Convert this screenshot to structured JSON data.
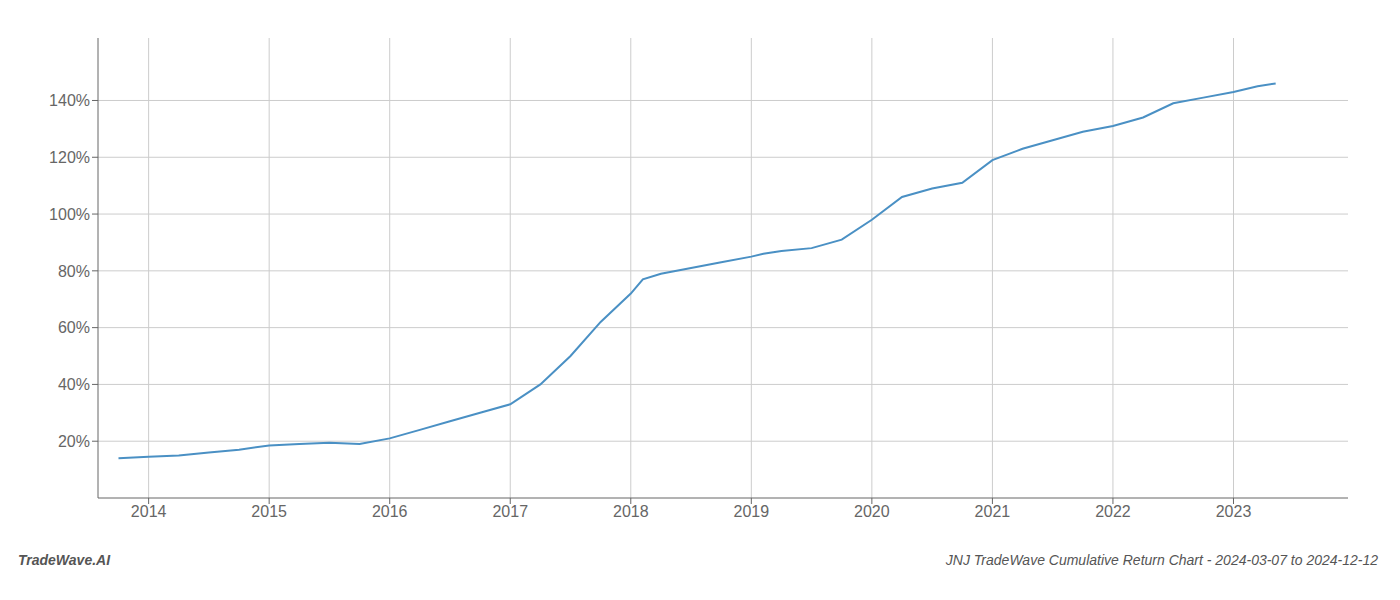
{
  "chart_data": {
    "type": "line",
    "annotations": [
      "TradeWave.AI",
      "JNJ TradeWave Cumulative Return Chart - 2024-03-07 to 2024-12-12"
    ],
    "x": [
      2013.75,
      2014.0,
      2014.25,
      2014.5,
      2014.75,
      2015.0,
      2015.25,
      2015.5,
      2015.75,
      2016.0,
      2016.25,
      2016.5,
      2016.75,
      2017.0,
      2017.25,
      2017.5,
      2017.75,
      2018.0,
      2018.1,
      2018.25,
      2018.5,
      2018.75,
      2019.0,
      2019.1,
      2019.25,
      2019.5,
      2019.75,
      2020.0,
      2020.25,
      2020.5,
      2020.75,
      2021.0,
      2021.25,
      2021.5,
      2021.75,
      2022.0,
      2022.25,
      2022.5,
      2022.75,
      2023.0,
      2023.2,
      2023.35
    ],
    "values": [
      14,
      14.5,
      15,
      16,
      17,
      18.5,
      19,
      19.5,
      19,
      21,
      24,
      27,
      30,
      33,
      40,
      50,
      62,
      72,
      77,
      79,
      81,
      83,
      85,
      86,
      87,
      88,
      91,
      98,
      106,
      109,
      111,
      119,
      123,
      126,
      129,
      131,
      134,
      139,
      141,
      143,
      145,
      146
    ],
    "color": "#4a90c4",
    "xlim": [
      2013.58,
      2023.95
    ],
    "xticks": [
      2014,
      2015,
      2016,
      2017,
      2018,
      2019,
      2020,
      2021,
      2022,
      2023
    ],
    "ylim": [
      0,
      162
    ],
    "yticks": [
      {
        "value": 20,
        "label": "20%"
      },
      {
        "value": 40,
        "label": "40%"
      },
      {
        "value": 60,
        "label": "60%"
      },
      {
        "value": 80,
        "label": "80%"
      },
      {
        "value": 100,
        "label": "100%"
      },
      {
        "value": 120,
        "label": "120%"
      },
      {
        "value": 140,
        "label": "140%"
      }
    ],
    "grid": true
  }
}
